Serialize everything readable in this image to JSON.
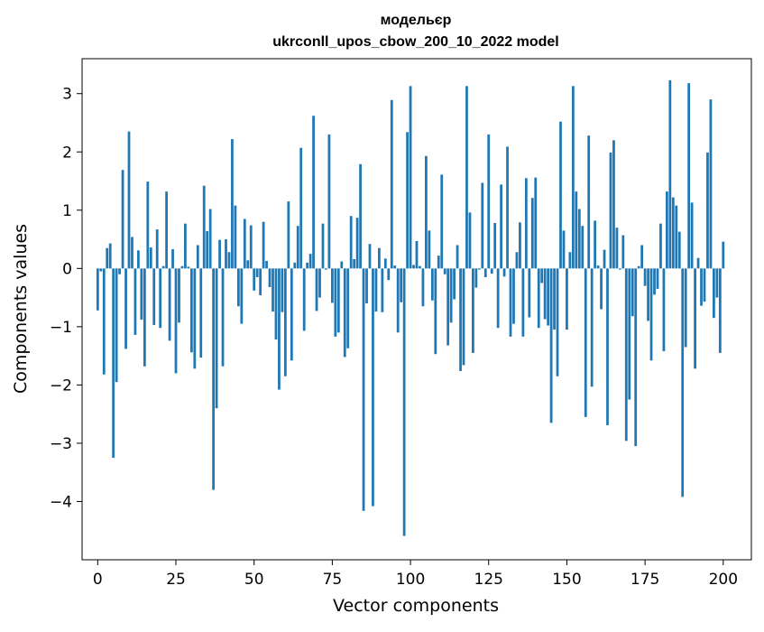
{
  "chart_data": {
    "type": "bar",
    "title_line1": "модельєр",
    "title_line2": "ukrconll_upos_cbow_200_10_2022 model",
    "xlabel": "Vector components",
    "ylabel": "Components values",
    "xlim": [
      -5,
      209
    ],
    "ylim": [
      -5.0,
      3.6
    ],
    "xticks": [
      0,
      25,
      50,
      75,
      100,
      125,
      150,
      175,
      200
    ],
    "xtick_labels": [
      "0",
      "25",
      "50",
      "75",
      "100",
      "125",
      "150",
      "175",
      "200"
    ],
    "yticks": [
      -4,
      -3,
      -2,
      -1,
      0,
      1,
      2,
      3
    ],
    "ytick_labels": [
      "−4",
      "−3",
      "−2",
      "−1",
      "0",
      "1",
      "2",
      "3"
    ],
    "grid": false,
    "bar_color": "#1f77b4",
    "values": [
      -0.72,
      -0.05,
      -1.82,
      0.35,
      0.43,
      -3.25,
      -1.95,
      -0.1,
      1.69,
      -1.38,
      2.35,
      0.54,
      -1.14,
      0.31,
      -0.88,
      -1.68,
      1.49,
      0.36,
      -0.97,
      0.67,
      -1.02,
      0.04,
      1.32,
      -1.24,
      0.33,
      -1.8,
      -0.93,
      0.04,
      0.77,
      0.03,
      -1.44,
      -1.72,
      0.4,
      -1.53,
      1.42,
      0.64,
      1.02,
      -3.8,
      -2.4,
      0.49,
      -1.68,
      0.5,
      0.28,
      2.22,
      1.08,
      -0.65,
      -0.95,
      0.85,
      0.14,
      0.74,
      -0.38,
      -0.15,
      -0.46,
      0.8,
      0.13,
      -0.32,
      -0.74,
      -1.22,
      -2.08,
      -0.75,
      -1.85,
      1.15,
      -1.58,
      0.1,
      0.73,
      2.07,
      -1.07,
      0.1,
      0.25,
      2.62,
      -0.73,
      -0.5,
      0.77,
      -0.02,
      2.3,
      -0.59,
      -1.17,
      -1.1,
      0.12,
      -1.52,
      -1.37,
      0.9,
      0.16,
      0.87,
      1.79,
      -4.16,
      -0.6,
      0.42,
      -4.08,
      -0.74,
      0.35,
      -0.75,
      0.17,
      -0.2,
      2.89,
      0.05,
      -1.1,
      -0.58,
      -4.59,
      2.34,
      3.13,
      0.06,
      0.47,
      0.04,
      -0.65,
      1.93,
      0.65,
      -0.55,
      -1.47,
      0.22,
      1.61,
      -0.1,
      -1.32,
      -0.93,
      -0.53,
      0.4,
      -1.76,
      -1.66,
      3.13,
      0.96,
      -1.45,
      -0.33,
      -0.02,
      1.47,
      -0.15,
      2.3,
      -0.09,
      0.78,
      -1.02,
      1.44,
      -0.14,
      2.09,
      -1.17,
      -0.95,
      0.28,
      0.79,
      -1.17,
      1.55,
      -0.84,
      1.21,
      1.56,
      -1.02,
      -0.25,
      -0.87,
      -0.98,
      -2.65,
      -1.05,
      -1.85,
      2.52,
      0.65,
      -1.05,
      0.28,
      3.13,
      1.32,
      1.02,
      0.73,
      -2.55,
      2.28,
      -2.03,
      0.82,
      0.05,
      -0.7,
      0.32,
      -2.69,
      1.99,
      2.2,
      0.7,
      -0.02,
      0.57,
      -2.96,
      -2.25,
      -0.82,
      -3.05,
      0.04,
      0.4,
      -0.3,
      -0.9,
      -1.58,
      -0.45,
      -0.35,
      0.77,
      -1.42,
      1.32,
      3.23,
      1.22,
      1.08,
      0.63,
      -3.92,
      -1.35,
      3.18,
      1.13,
      -1.72,
      0.18,
      -0.64,
      -0.57,
      1.99,
      2.9,
      -0.85,
      -0.5,
      -1.45,
      0.46
    ]
  }
}
